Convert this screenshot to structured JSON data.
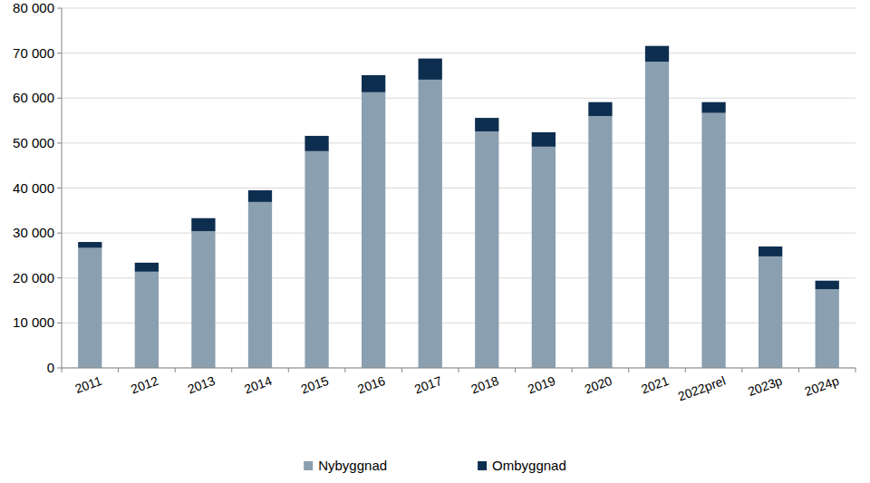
{
  "chart_data": {
    "type": "bar",
    "stacked": true,
    "grid": true,
    "legend": "bottom",
    "categories": [
      "2011",
      "2012",
      "2013",
      "2014",
      "2015",
      "2016",
      "2017",
      "2018",
      "2019",
      "2020",
      "2021",
      "2022prel",
      "2023p",
      "2024p"
    ],
    "series": [
      {
        "name": "Nybyggnad",
        "color": "#8a9fb0",
        "values": [
          26700,
          21400,
          30400,
          36900,
          48200,
          61300,
          64100,
          52600,
          49200,
          56000,
          68100,
          56700,
          24800,
          17500
        ]
      },
      {
        "name": "Ombyggnad",
        "color": "#0d2e4f",
        "values": [
          1300,
          2000,
          2900,
          2600,
          3400,
          3800,
          4700,
          3000,
          3200,
          3100,
          3500,
          2400,
          2200,
          1900
        ]
      }
    ],
    "ylim": [
      0,
      80000
    ],
    "yticks": [
      0,
      {
        "value": 10000,
        "label": "10 000"
      },
      {
        "value": 20000,
        "label": "20 000"
      },
      {
        "value": 30000,
        "label": "30 000"
      },
      {
        "value": 40000,
        "label": "40 000"
      },
      {
        "value": 50000,
        "label": "50 000"
      },
      {
        "value": 60000,
        "label": "60 000"
      },
      {
        "value": 70000,
        "label": "70 000"
      },
      {
        "value": 80000,
        "label": "80 000"
      }
    ]
  }
}
